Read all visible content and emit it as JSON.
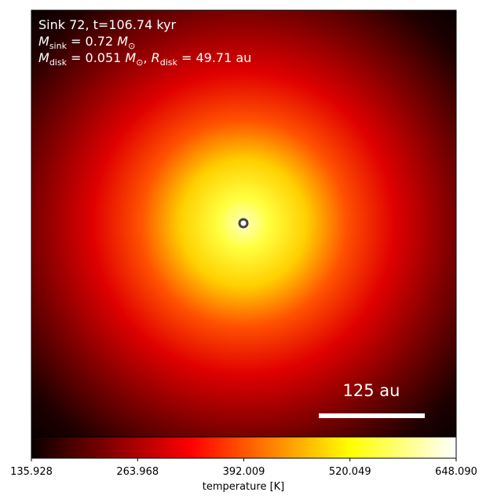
{
  "chart_data": {
    "type": "image",
    "colormap": "hot",
    "annotations": [
      [
        {
          "text": "Sink 72, t=106.74 kyr",
          "baseline": "normal"
        }
      ],
      [
        {
          "text": "M",
          "baseline": "italic"
        },
        {
          "text": "sink",
          "baseline": "sub"
        },
        {
          "text": " = 0.72 ",
          "baseline": "normal"
        },
        {
          "text": "M",
          "baseline": "italic"
        },
        {
          "text": "⊙",
          "baseline": "sub"
        }
      ],
      [
        {
          "text": "M",
          "baseline": "italic"
        },
        {
          "text": "disk",
          "baseline": "sub"
        },
        {
          "text": " = 0.051 ",
          "baseline": "normal"
        },
        {
          "text": "M",
          "baseline": "italic"
        },
        {
          "text": "⊙",
          "baseline": "sub"
        },
        {
          "text": ", ",
          "baseline": "normal"
        },
        {
          "text": "R",
          "baseline": "italic"
        },
        {
          "text": "disk",
          "baseline": "sub"
        },
        {
          "text": " = 49.71 au",
          "baseline": "normal"
        }
      ]
    ],
    "scale_bar_label": "125 au",
    "colorbar": {
      "label": "temperature [K]",
      "lim": [
        135.928,
        {
          "value": 648.09,
          "label": "648.090"
        }
      ],
      "ticks": [
        135.928,
        263.968,
        392.009,
        520.049,
        {
          "value": 648.09,
          "label": "648.090"
        }
      ]
    }
  }
}
